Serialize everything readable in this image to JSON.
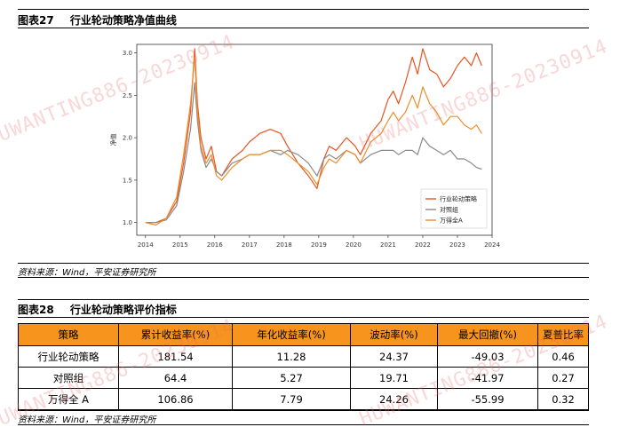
{
  "fig1": {
    "number": "图表27",
    "title": "行业轮动策略净值曲线"
  },
  "source1": "资料来源：Wind，平安证券研究所",
  "fig2": {
    "number": "图表28",
    "title": "行业轮动策略评价指标"
  },
  "source2": "资料来源：Wind，平安证券研究所",
  "watermarks": [
    "HUWANTING886-20230914",
    "HUWANTING886-20230914",
    "HUWANTING886-20230914",
    "HUWANTING886-20230914"
  ],
  "chart_data": {
    "type": "line",
    "ylabel": "净值",
    "xlabel": "",
    "xlim": [
      2013.75,
      2024.0
    ],
    "ylim": [
      0.85,
      3.1
    ],
    "xticks": [
      "2014",
      "2015",
      "2016",
      "2017",
      "2018",
      "2019",
      "2020",
      "2021",
      "2022",
      "2023",
      "2024"
    ],
    "yticks": [
      "1.0",
      "1.5",
      "2.0",
      "2.5",
      "3.0"
    ],
    "grid": false,
    "legend": "lower-right",
    "series": [
      {
        "name": "行业轮动策略",
        "color": "#e8541e",
        "x": [
          2014.0,
          2014.3,
          2014.6,
          2014.9,
          2015.1,
          2015.3,
          2015.42,
          2015.5,
          2015.6,
          2015.75,
          2015.9,
          2016.05,
          2016.2,
          2016.5,
          2016.8,
          2017.0,
          2017.3,
          2017.6,
          2017.9,
          2018.1,
          2018.4,
          2018.7,
          2018.95,
          2019.15,
          2019.3,
          2019.5,
          2019.8,
          2020.05,
          2020.2,
          2020.5,
          2020.8,
          2021.0,
          2021.15,
          2021.3,
          2021.5,
          2021.7,
          2021.85,
          2022.0,
          2022.2,
          2022.4,
          2022.6,
          2022.8,
          2023.0,
          2023.2,
          2023.4,
          2023.55,
          2023.7
        ],
        "y": [
          1.0,
          1.0,
          1.05,
          1.25,
          1.7,
          2.3,
          3.05,
          2.4,
          2.0,
          1.75,
          1.9,
          1.6,
          1.55,
          1.75,
          1.85,
          1.95,
          2.05,
          2.1,
          2.05,
          1.9,
          1.7,
          1.55,
          1.4,
          1.75,
          1.9,
          1.85,
          2.0,
          1.9,
          1.8,
          2.05,
          2.2,
          2.45,
          2.55,
          2.4,
          2.65,
          2.95,
          2.75,
          3.05,
          2.8,
          2.75,
          2.6,
          2.7,
          2.85,
          2.95,
          2.85,
          3.0,
          2.85
        ]
      },
      {
        "name": "对照组",
        "color": "#8a8a8a",
        "x": [
          2014.0,
          2014.3,
          2014.6,
          2014.9,
          2015.1,
          2015.3,
          2015.42,
          2015.5,
          2015.6,
          2015.75,
          2015.9,
          2016.05,
          2016.2,
          2016.5,
          2016.8,
          2017.0,
          2017.3,
          2017.6,
          2017.9,
          2018.1,
          2018.4,
          2018.7,
          2018.95,
          2019.15,
          2019.3,
          2019.5,
          2019.8,
          2020.05,
          2020.2,
          2020.5,
          2020.8,
          2021.0,
          2021.15,
          2021.3,
          2021.5,
          2021.7,
          2021.85,
          2022.0,
          2022.2,
          2022.4,
          2022.6,
          2022.8,
          2023.0,
          2023.2,
          2023.4,
          2023.55,
          2023.7
        ],
        "y": [
          1.0,
          1.0,
          1.03,
          1.2,
          1.6,
          2.1,
          2.65,
          2.2,
          1.85,
          1.65,
          1.75,
          1.6,
          1.55,
          1.7,
          1.75,
          1.8,
          1.8,
          1.85,
          1.8,
          1.85,
          1.8,
          1.7,
          1.55,
          1.75,
          1.8,
          1.75,
          1.85,
          1.8,
          1.7,
          1.8,
          1.85,
          1.85,
          1.85,
          1.8,
          1.85,
          1.85,
          1.8,
          2.0,
          1.9,
          1.85,
          1.8,
          1.85,
          1.75,
          1.75,
          1.7,
          1.65,
          1.63
        ]
      },
      {
        "name": "万得全A",
        "color": "#f08c2a",
        "x": [
          2014.0,
          2014.3,
          2014.6,
          2014.9,
          2015.1,
          2015.3,
          2015.42,
          2015.5,
          2015.6,
          2015.75,
          2015.9,
          2016.05,
          2016.2,
          2016.5,
          2016.8,
          2017.0,
          2017.3,
          2017.6,
          2017.9,
          2018.1,
          2018.4,
          2018.7,
          2018.95,
          2019.15,
          2019.3,
          2019.5,
          2019.8,
          2020.05,
          2020.2,
          2020.5,
          2020.8,
          2021.0,
          2021.15,
          2021.3,
          2021.5,
          2021.7,
          2021.85,
          2022.0,
          2022.2,
          2022.4,
          2022.6,
          2022.8,
          2023.0,
          2023.2,
          2023.4,
          2023.55,
          2023.7
        ],
        "y": [
          1.0,
          0.97,
          1.05,
          1.3,
          1.8,
          2.4,
          2.95,
          2.3,
          1.9,
          1.7,
          1.8,
          1.55,
          1.5,
          1.65,
          1.75,
          1.8,
          1.8,
          1.85,
          1.85,
          1.8,
          1.7,
          1.6,
          1.45,
          1.65,
          1.75,
          1.7,
          1.85,
          1.8,
          1.7,
          1.95,
          2.05,
          2.2,
          2.3,
          2.2,
          2.3,
          2.5,
          2.35,
          2.6,
          2.4,
          2.3,
          2.15,
          2.25,
          2.25,
          2.15,
          2.1,
          2.15,
          2.05
        ]
      }
    ]
  },
  "table": {
    "headers": [
      "策略",
      "累计收益率(%)",
      "年化收益率(%)",
      "波动率(%)",
      "最大回撤(%)",
      "夏普比率"
    ],
    "rows": [
      [
        "行业轮动策略",
        "181.54",
        "11.28",
        "24.37",
        "-49.03",
        "0.46"
      ],
      [
        "对照组",
        "64.4",
        "5.27",
        "19.71",
        "-41.97",
        "0.27"
      ],
      [
        "万得全 A",
        "106.86",
        "7.79",
        "24.26",
        "-55.99",
        "0.32"
      ]
    ]
  }
}
